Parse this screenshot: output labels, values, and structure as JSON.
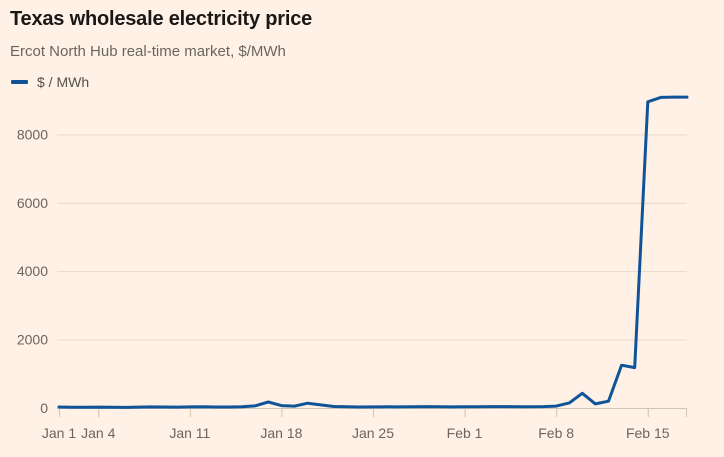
{
  "header": {
    "title": "Texas wholesale electricity price",
    "subtitle": "Ercot North Hub real-time market, $/MWh"
  },
  "colors": {
    "background": "#fff1e5",
    "line": "#0f5499",
    "grid": "#e6d9c9",
    "axis": "#cfc5b4",
    "title_text": "#1a1817",
    "muted_text": "#6b655f"
  },
  "chart_data": {
    "type": "line",
    "title": "Texas wholesale electricity price",
    "subtitle": "Ercot North Hub real-time market, $/MWh",
    "xlabel": "",
    "ylabel": "$ / MWh",
    "grid": "horizontal-only",
    "legend_position": "top-left",
    "ylim": [
      0,
      9150
    ],
    "y_ticks": [
      0,
      2000,
      4000,
      6000,
      8000
    ],
    "x": [
      "Jan 1",
      "Jan 2",
      "Jan 3",
      "Jan 4",
      "Jan 5",
      "Jan 6",
      "Jan 7",
      "Jan 8",
      "Jan 9",
      "Jan 10",
      "Jan 11",
      "Jan 12",
      "Jan 13",
      "Jan 14",
      "Jan 15",
      "Jan 16",
      "Jan 17",
      "Jan 18",
      "Jan 19",
      "Jan 20",
      "Jan 21",
      "Jan 22",
      "Jan 23",
      "Jan 24",
      "Jan 25",
      "Jan 26",
      "Jan 27",
      "Jan 28",
      "Jan 29",
      "Jan 30",
      "Jan 31",
      "Feb 1",
      "Feb 2",
      "Feb 3",
      "Feb 4",
      "Feb 5",
      "Feb 6",
      "Feb 7",
      "Feb 8",
      "Feb 9",
      "Feb 10",
      "Feb 11",
      "Feb 12",
      "Feb 13",
      "Feb 14",
      "Feb 15",
      "Feb 16",
      "Feb 17",
      "Feb 18"
    ],
    "x_ticks": [
      {
        "label": "Jan 1",
        "day": 0
      },
      {
        "label": "Jan 4",
        "day": 3
      },
      {
        "label": "Jan 11",
        "day": 10
      },
      {
        "label": "Jan 18",
        "day": 17
      },
      {
        "label": "Jan 25",
        "day": 24
      },
      {
        "label": "Feb 1",
        "day": 31
      },
      {
        "label": "Feb 8",
        "day": 38
      },
      {
        "label": "Feb 15",
        "day": 45
      }
    ],
    "x_end_tick_day": 48,
    "series": [
      {
        "name": "$ / MWh",
        "color": "#0f5499",
        "values": [
          28,
          24,
          20,
          26,
          22,
          18,
          26,
          32,
          30,
          27,
          33,
          36,
          30,
          28,
          36,
          65,
          175,
          70,
          55,
          140,
          90,
          45,
          34,
          30,
          32,
          35,
          32,
          38,
          42,
          36,
          32,
          38,
          34,
          40,
          42,
          38,
          34,
          40,
          55,
          150,
          430,
          120,
          200,
          1250,
          1180,
          8950,
          9080,
          9090,
          9090
        ]
      }
    ]
  }
}
